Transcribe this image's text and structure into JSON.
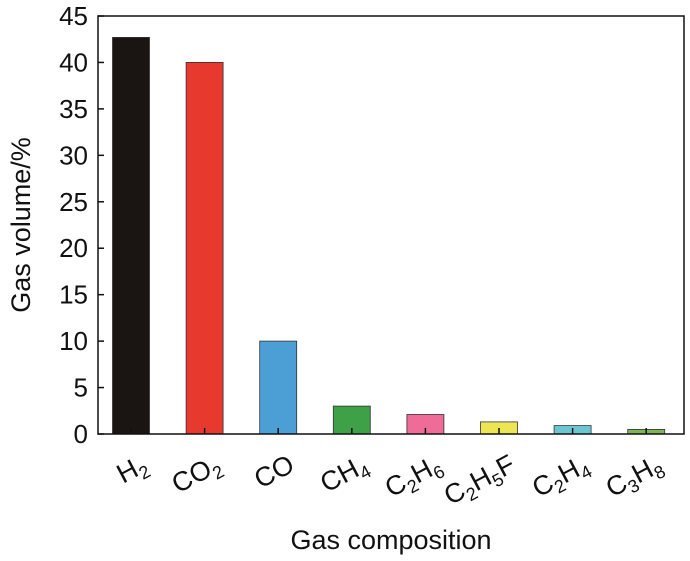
{
  "chart_data": {
    "type": "bar",
    "xlabel": "Gas composition",
    "ylabel": "Gas volume/%",
    "ylim": [
      0,
      45
    ],
    "yticks": [
      "0",
      "5",
      "10",
      "15",
      "20",
      "25",
      "30",
      "35",
      "40",
      "45"
    ],
    "grid": false,
    "categories": [
      {
        "base": "H",
        "sub": "2",
        "parts": [
          [
            "H",
            ""
          ],
          [
            "2",
            "sub"
          ]
        ]
      },
      {
        "base": "CO",
        "sub": "2",
        "parts": [
          [
            "CO",
            ""
          ],
          [
            "2",
            "sub"
          ]
        ]
      },
      {
        "base": "CO",
        "sub": "",
        "parts": [
          [
            "CO",
            ""
          ]
        ]
      },
      {
        "base": "CH",
        "sub": "4",
        "parts": [
          [
            "CH",
            ""
          ],
          [
            "4",
            "sub"
          ]
        ]
      },
      {
        "base": "C2H6",
        "sub": "",
        "parts": [
          [
            "C",
            ""
          ],
          [
            "2",
            "sub"
          ],
          [
            "H",
            ""
          ],
          [
            "6",
            "sub"
          ]
        ]
      },
      {
        "base": "C2H5F",
        "sub": "",
        "parts": [
          [
            "C",
            ""
          ],
          [
            "2",
            "sub"
          ],
          [
            "H",
            ""
          ],
          [
            "5",
            "sub"
          ],
          [
            "F",
            ""
          ]
        ]
      },
      {
        "base": "C2H4",
        "sub": "",
        "parts": [
          [
            "C",
            ""
          ],
          [
            "2",
            "sub"
          ],
          [
            "H",
            ""
          ],
          [
            "4",
            "sub"
          ]
        ]
      },
      {
        "base": "C3H8",
        "sub": "",
        "parts": [
          [
            "C",
            ""
          ],
          [
            "3",
            "sub"
          ],
          [
            "H",
            ""
          ],
          [
            "8",
            "sub"
          ]
        ]
      }
    ],
    "values": [
      42.7,
      40.0,
      10.0,
      3.0,
      2.1,
      1.3,
      0.9,
      0.5
    ],
    "colors": [
      "#1a1512",
      "#e8392f",
      "#4b9fd5",
      "#3ea047",
      "#ef6b98",
      "#ece554",
      "#6cc6d2",
      "#7db659"
    ]
  }
}
